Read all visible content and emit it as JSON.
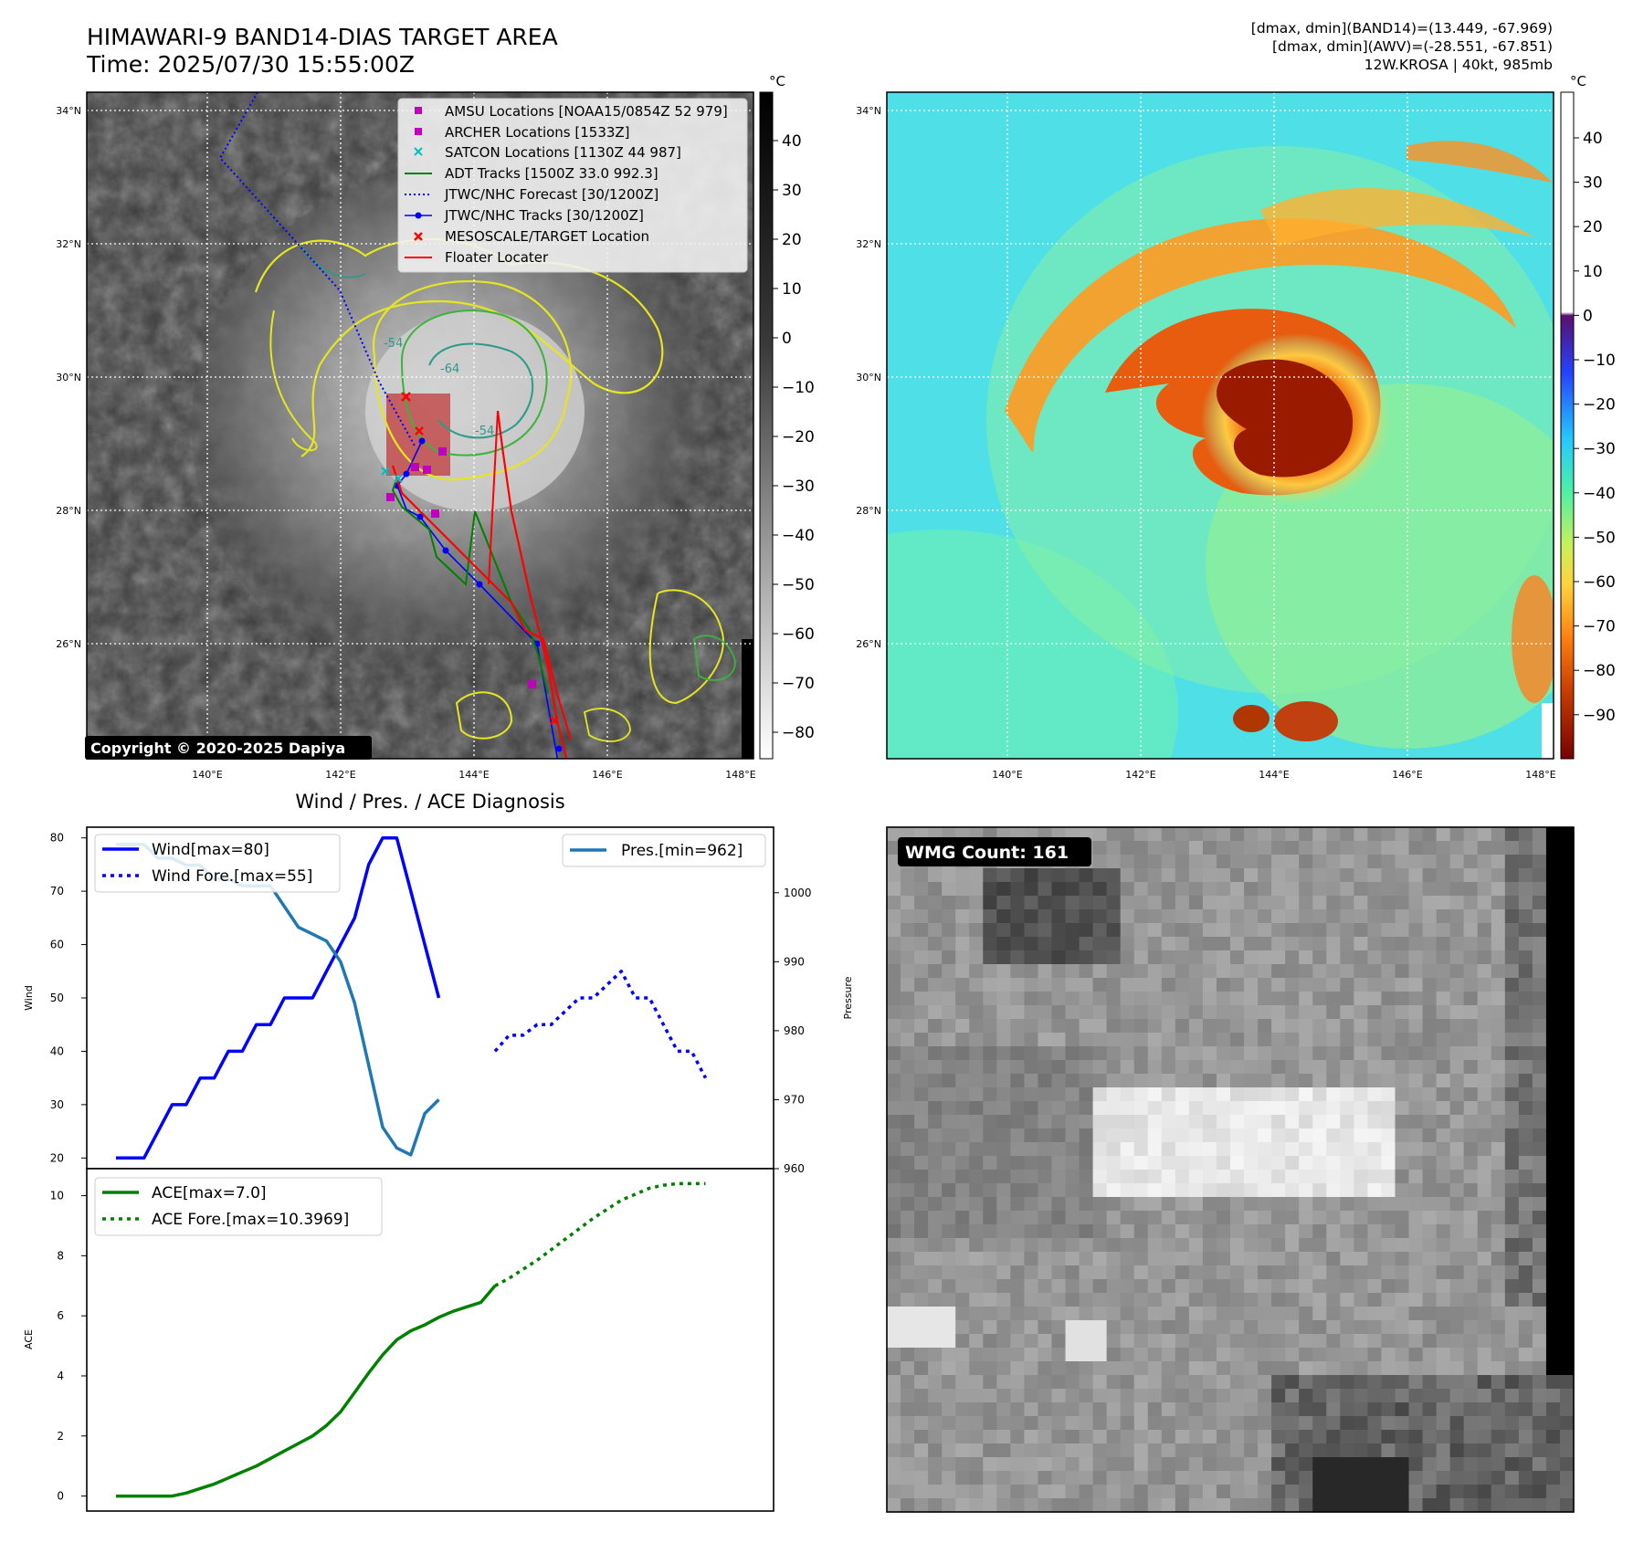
{
  "header": {
    "title_line1": "HIMAWARI-9 BAND14-DIAS TARGET AREA",
    "title_line2": "Time: 2025/07/30 15:55:00Z",
    "info_line1": "[dmax, dmin](BAND14)=(13.449, -67.969)",
    "info_line2": "[dmax, dmin](AWV)=(-28.551, -67.851)",
    "info_line3": "12W.KROSA | 40kt, 985mb"
  },
  "map": {
    "lon_ticks": [
      "140°E",
      "142°E",
      "144°E",
      "146°E",
      "148°E"
    ],
    "lat_ticks": [
      "34°N",
      "32°N",
      "30°N",
      "28°N",
      "26°N"
    ],
    "copyright": "Copyright © 2020-2025 Dapiya",
    "contour_labels": [
      "-64",
      "-54",
      "-54"
    ],
    "legend": [
      {
        "label": "AMSU Locations [NOAA15/0854Z 52 979]",
        "color": "#bf00bf",
        "style": "square"
      },
      {
        "label": "ARCHER Locations [1533Z]",
        "color": "#bf00bf",
        "style": "square"
      },
      {
        "label": "SATCON Locations [1130Z 44 987]",
        "color": "#00bfbf",
        "style": "x"
      },
      {
        "label": "ADT Tracks [1500Z 33.0 992.3]",
        "color": "#008000",
        "style": "line"
      },
      {
        "label": "JTWC/NHC Forecast [30/1200Z]",
        "color": "#0000ff",
        "style": "dotted"
      },
      {
        "label": "JTWC/NHC Tracks [30/1200Z]",
        "color": "#0000ff",
        "style": "line-dot"
      },
      {
        "label": "MESOSCALE/TARGET Location",
        "color": "#ff0000",
        "style": "x"
      },
      {
        "label": "Floater Locater",
        "color": "#ff0000",
        "style": "line"
      }
    ]
  },
  "colorbar_gray": {
    "unit": "°C",
    "ticks": [
      "40",
      "30",
      "20",
      "10",
      "0",
      "−10",
      "−20",
      "−30",
      "−40",
      "−50",
      "−60",
      "−70",
      "−80"
    ]
  },
  "colorbar_color": {
    "unit": "°C",
    "ticks": [
      "40",
      "30",
      "20",
      "10",
      "0",
      "−10",
      "−20",
      "−30",
      "−40",
      "−50",
      "−60",
      "−70",
      "−80",
      "−90"
    ]
  },
  "wmg": {
    "label": "WMG Count: 161"
  },
  "chart_data": [
    {
      "type": "line",
      "title": "Wind / Pres. / ACE Diagnosis",
      "ylabel": "Wind",
      "ylabel_right": "Pressure",
      "ylim": [
        18,
        82
      ],
      "ylim_right": [
        960,
        1009.5
      ],
      "y_ticks": [
        "80",
        "70",
        "60",
        "50",
        "40",
        "30",
        "20"
      ],
      "y_ticks_right": [
        "1000",
        "990",
        "980",
        "970",
        "960"
      ],
      "series": [
        {
          "name": "Wind[max=80]",
          "axis": "left",
          "color": "#0000ff",
          "style": "solid",
          "x": [
            0,
            1,
            2,
            3,
            4,
            5,
            6,
            7,
            8,
            9,
            10,
            11,
            12,
            13,
            14,
            15,
            16,
            17,
            18,
            19,
            20,
            21,
            22,
            23
          ],
          "values": [
            20,
            20,
            20,
            25,
            30,
            30,
            35,
            35,
            40,
            40,
            45,
            45,
            50,
            50,
            50,
            55,
            60,
            65,
            75,
            80,
            80,
            70,
            60,
            50
          ]
        },
        {
          "name": "Wind Fore.[max=55]",
          "axis": "left",
          "color": "#0000ff",
          "style": "dotted",
          "x": [
            27,
            28,
            29,
            30,
            31,
            32,
            33,
            34,
            35,
            36,
            37,
            38,
            39,
            40,
            41,
            42
          ],
          "values": [
            40,
            43,
            43,
            45,
            45,
            47.5,
            50,
            50,
            52.5,
            55,
            50,
            50,
            45,
            40,
            40,
            35
          ]
        },
        {
          "name": "Pres.[min=962]",
          "axis": "right",
          "color": "#1f77b4",
          "style": "solid",
          "x": [
            0,
            1,
            2,
            3,
            4,
            5,
            6,
            7,
            8,
            9,
            10,
            11,
            12,
            13,
            14,
            15,
            16,
            17,
            18,
            19,
            20,
            21,
            22,
            23
          ],
          "values": [
            1007,
            1007,
            1007,
            1005,
            1005,
            1004,
            1004,
            1002,
            1002,
            1001,
            1001,
            1001,
            998,
            995,
            994,
            993,
            990,
            984,
            975,
            966,
            963,
            962,
            968,
            970
          ]
        }
      ]
    },
    {
      "type": "line",
      "ylabel": "ACE",
      "ylim": [
        -0.5,
        10.9
      ],
      "y_ticks": [
        "10",
        "8",
        "6",
        "4",
        "2",
        "0"
      ],
      "series": [
        {
          "name": "ACE[max=7.0]",
          "color": "#008000",
          "style": "solid",
          "x": [
            0,
            1,
            2,
            3,
            4,
            5,
            6,
            7,
            8,
            9,
            10,
            11,
            12,
            13,
            14,
            15,
            16,
            17,
            18,
            19,
            20,
            21,
            22,
            23,
            24,
            25,
            26,
            27
          ],
          "values": [
            0,
            0,
            0,
            0,
            0,
            0.1,
            0.25,
            0.4,
            0.6,
            0.8,
            1.0,
            1.25,
            1.5,
            1.75,
            2.0,
            2.35,
            2.8,
            3.45,
            4.1,
            4.7,
            5.2,
            5.5,
            5.7,
            5.95,
            6.15,
            6.3,
            6.45,
            7.0
          ]
        },
        {
          "name": "ACE Fore.[max=10.3969]",
          "color": "#008000",
          "style": "dotted",
          "x": [
            27,
            28,
            29,
            30,
            31,
            32,
            33,
            34,
            35,
            36,
            37,
            38,
            39,
            40,
            41,
            42
          ],
          "values": [
            7.0,
            7.25,
            7.55,
            7.85,
            8.2,
            8.55,
            8.9,
            9.25,
            9.55,
            9.85,
            10.05,
            10.25,
            10.35,
            10.4,
            10.4,
            10.4
          ]
        }
      ]
    }
  ]
}
